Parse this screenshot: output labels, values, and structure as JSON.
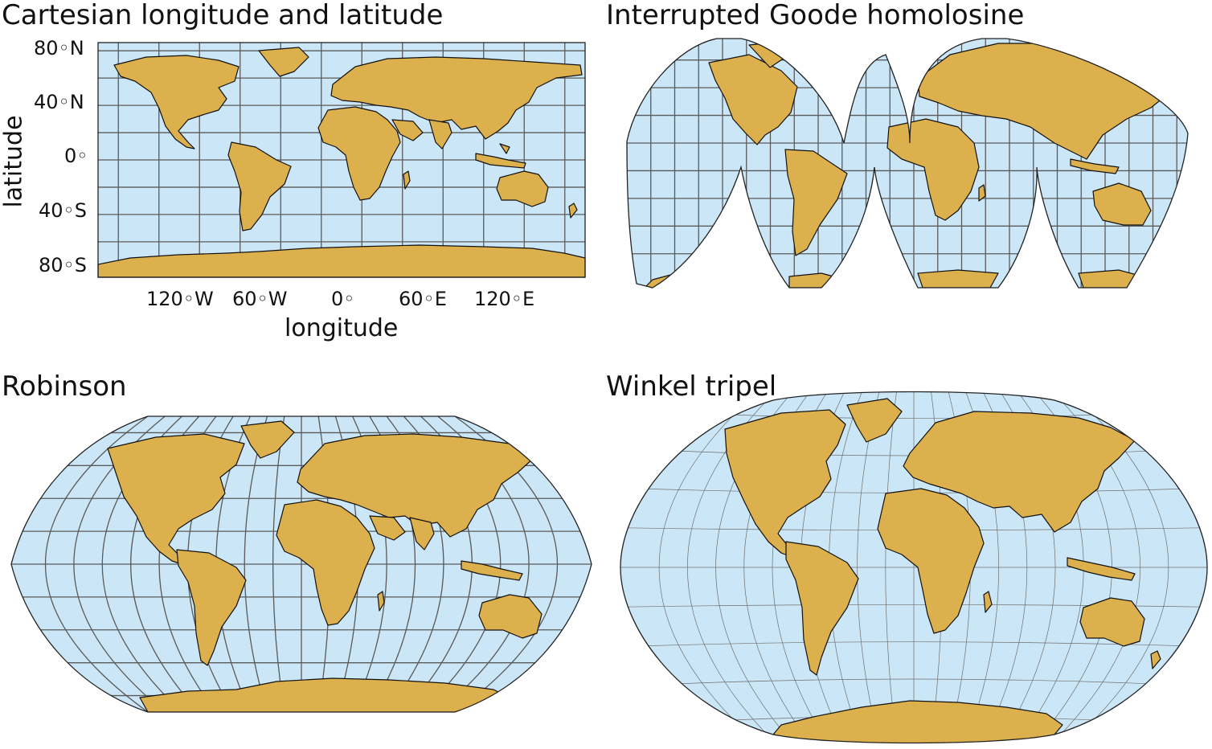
{
  "panels": [
    {
      "id": "cartesian",
      "title": "Cartesian longitude and latitude",
      "xlabel": "longitude",
      "ylabel": "latitude",
      "xticks": [
        "120◦W",
        "60◦W",
        "0◦",
        "60◦E",
        "120◦E"
      ],
      "yticks": [
        "80◦N",
        "40◦N",
        "0◦",
        "40◦S",
        "80◦S"
      ]
    },
    {
      "id": "goode",
      "title": "Interrupted Goode homolosine"
    },
    {
      "id": "robinson",
      "title": "Robinson"
    },
    {
      "id": "winkel",
      "title": "Winkel tripel"
    }
  ],
  "colors": {
    "ocean": "#cbe6f6",
    "land": "#ddb04e",
    "grid": "#5a5a5a",
    "border": "#111111"
  }
}
